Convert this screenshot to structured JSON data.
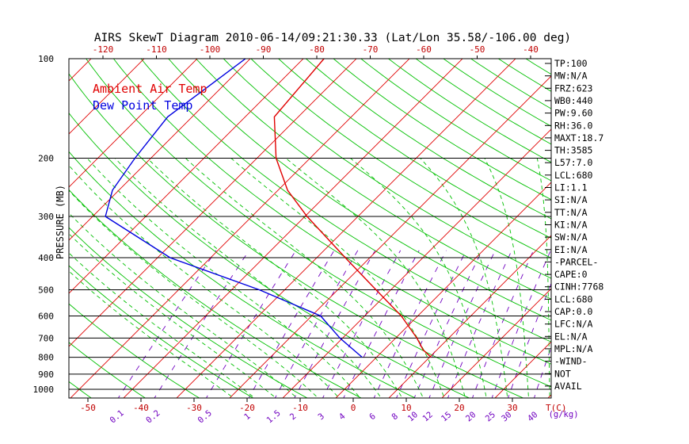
{
  "chart_data": {
    "type": "line",
    "title": "AIRS SkewT Diagram 2010-06-14/09:21:30.33 (Lat/Lon 35.58/-106.00 deg)",
    "ylabel": "PRESSURE (MB)",
    "y_scale": "log",
    "ylim": [
      1050,
      100
    ],
    "pressure_ticks": [
      {
        "p": 100,
        "label": "100"
      },
      {
        "p": 200,
        "label": "200"
      },
      {
        "p": 300,
        "label": "300"
      },
      {
        "p": 400,
        "label": "400"
      },
      {
        "p": 500,
        "label": "500"
      },
      {
        "p": 600,
        "label": "600"
      },
      {
        "p": 700,
        "label": "700"
      },
      {
        "p": 800,
        "label": "800"
      },
      {
        "p": 900,
        "label": "900"
      },
      {
        "p": 1000,
        "label": "1000"
      }
    ],
    "bottom_temp_ticks": [
      "-50",
      "-40",
      "-30",
      "-20",
      "-10",
      "0",
      "10",
      "20",
      "30",
      "40"
    ],
    "bottom_temp_unit": "T(C)",
    "top_temp_ticks": [
      "-120",
      "-110",
      "-100",
      "-90",
      "-80",
      "-70",
      "-60",
      "-50",
      "-40"
    ],
    "mixing_ratio_labels": [
      "0.1",
      "0.2",
      "0.5",
      "1",
      "1.5",
      "2",
      "3",
      "4",
      "6",
      "8",
      "10",
      "12",
      "15",
      "20",
      "25",
      "30",
      "40"
    ],
    "mixing_ratio_unit": "(g/kg)",
    "legend": {
      "placement": "top-left",
      "entries": [
        {
          "name": "Ambient Air Temp",
          "color": "#e00000"
        },
        {
          "name": "Dew Point Temp",
          "color": "#0000e0"
        }
      ]
    },
    "series": [
      {
        "name": "Ambient Air Temp",
        "color": "#e00000",
        "points": [
          {
            "p": 100,
            "t": -66.1
          },
          {
            "p": 150,
            "t": -64.5
          },
          {
            "p": 200,
            "t": -56.4
          },
          {
            "p": 250,
            "t": -48.2
          },
          {
            "p": 300,
            "t": -39.6
          },
          {
            "p": 400,
            "t": -24.6
          },
          {
            "p": 500,
            "t": -12.8
          },
          {
            "p": 600,
            "t": -3.1
          },
          {
            "p": 700,
            "t": 4.0
          },
          {
            "p": 760,
            "t": 7.4
          },
          {
            "p": 800,
            "t": 10.3
          }
        ]
      },
      {
        "name": "Dew Point Temp",
        "color": "#0000e0",
        "points": [
          {
            "p": 100,
            "t": -80.9
          },
          {
            "p": 150,
            "t": -84.6
          },
          {
            "p": 200,
            "t": -83.0
          },
          {
            "p": 250,
            "t": -81.2
          },
          {
            "p": 300,
            "t": -77.6
          },
          {
            "p": 400,
            "t": -57.6
          },
          {
            "p": 500,
            "t": -34.8
          },
          {
            "p": 600,
            "t": -18.3
          },
          {
            "p": 700,
            "t": -10.5
          },
          {
            "p": 800,
            "t": -2.7
          }
        ]
      }
    ],
    "parameters": [
      "TP:100",
      "MW:N/A",
      "FRZ:623",
      "WB0:440",
      "PW:9.60",
      "RH:36.0",
      "MAXT:18.7",
      "TH:3585",
      "L57:7.0",
      "LCL:680",
      "LI:1.1",
      "SI:N/A",
      "TT:N/A",
      "KI:N/A",
      "SW:N/A",
      "EI:N/A",
      "-PARCEL-",
      "CAPE:0",
      "CINH:7768",
      "LCL:680",
      "CAP:0.0",
      "LFC:N/A",
      "EL:N/A",
      "MPL:N/A",
      "-WIND-",
      " NOT",
      "AVAIL"
    ],
    "colors": {
      "isotherm": "#e00000",
      "dry_adiabat": "#00c000",
      "moist_adiabat": "#00c000",
      "mixing_ratio": "#7000c0",
      "isobar": "#000000",
      "axis_labels": "#c00000"
    }
  }
}
